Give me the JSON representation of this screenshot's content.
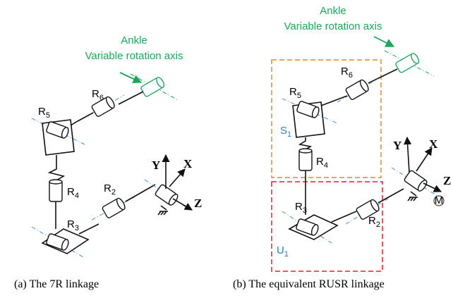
{
  "left": {
    "annotation": {
      "title": "Ankle",
      "subtitle": "Variable rotation axis"
    },
    "joints": [
      {
        "name": "R",
        "sub": "6"
      },
      {
        "name": "R",
        "sub": "5"
      },
      {
        "name": "R",
        "sub": "4"
      },
      {
        "name": "R",
        "sub": "3"
      },
      {
        "name": "R",
        "sub": "2"
      }
    ],
    "axes": [
      "Y",
      "X",
      "Z"
    ],
    "caption": "(a) The 7R linkage"
  },
  "right": {
    "annotation": {
      "title": "Ankle",
      "subtitle": "Variable rotation axis"
    },
    "joints": [
      {
        "name": "R",
        "sub": "6"
      },
      {
        "name": "R",
        "sub": "5"
      },
      {
        "name": "S",
        "sub": "1"
      },
      {
        "name": "R",
        "sub": "4"
      },
      {
        "name": "R",
        "sub": "3"
      },
      {
        "name": "U",
        "sub": "1"
      },
      {
        "name": "R",
        "sub": "2"
      }
    ],
    "axes": [
      "Y",
      "X",
      "Z"
    ],
    "motor": "M",
    "caption": "(b) The equivalent RUSR linkage"
  }
}
